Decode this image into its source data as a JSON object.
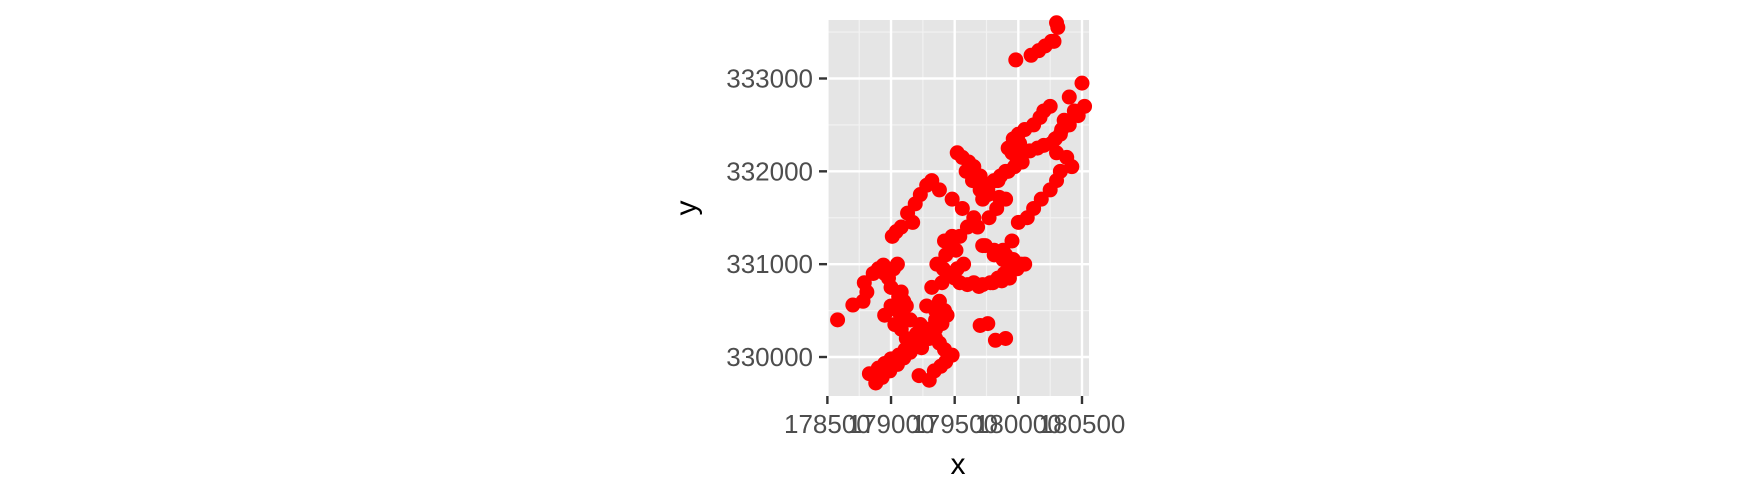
{
  "chart_data": {
    "type": "scatter",
    "title": "",
    "xlabel": "x",
    "ylabel": "y",
    "xlim": [
      178497,
      180555
    ],
    "ylim": [
      329580,
      333630
    ],
    "x_ticks": [
      178500,
      179000,
      179500,
      180000,
      180500
    ],
    "x_tick_labels": [
      "178500",
      "179000",
      "179500",
      "180000",
      "180500"
    ],
    "y_ticks": [
      330000,
      331000,
      332000,
      333000
    ],
    "y_tick_labels": [
      "330000",
      "331000",
      "332000",
      "333000"
    ],
    "grid": true,
    "panel_background": "#e5e5e5",
    "point_color": "#ff0000",
    "legend": "none",
    "x": [
      178580,
      178700,
      178780,
      178810,
      178790,
      178860,
      178900,
      178940,
      178950,
      178980,
      179020,
      179050,
      179000,
      179060,
      179080,
      179100,
      179060,
      179120,
      178950,
      179030,
      179080,
      179150,
      179200,
      179120,
      179180,
      179240,
      179300,
      179350,
      179280,
      179320,
      179400,
      179380,
      179420,
      179350,
      179300,
      179260,
      179440,
      179480,
      179520,
      179570,
      179650,
      179720,
      179800,
      179870,
      179930,
      179990,
      180050,
      179720,
      179880,
      179810,
      179950,
      180000,
      180070,
      180120,
      180180,
      180250,
      180300,
      180330,
      180420,
      180380,
      180300,
      180260,
      180200,
      180150,
      180090,
      180010,
      180340,
      180400,
      180470,
      180520,
      180330,
      180290,
      180360,
      180440,
      180400,
      180500,
      180250,
      180200,
      180170,
      180120,
      180050,
      180000,
      179960,
      180010,
      179920,
      179950,
      179990,
      180030,
      179970,
      179900,
      179860,
      179810,
      179760,
      179700,
      179650,
      179610,
      179560,
      179520,
      179590,
      179640,
      179700,
      179760,
      179850,
      179900,
      179820,
      179480,
      179420,
      179460,
      179510,
      179430,
      179360,
      179410,
      179460,
      179500,
      179540,
      179600,
      179690,
      179780,
      179840,
      179890,
      179950,
      179880,
      179540,
      179600,
      179650,
      179560,
      179480,
      179380,
      179320,
      179280,
      179230,
      179190,
      179130,
      179170,
      179080,
      179040,
      179010,
      178830,
      178900,
      178950,
      179000,
      179060,
      179110,
      179160,
      179200,
      179240,
      179290,
      179220,
      179300,
      179340,
      179390,
      179430,
      179480,
      179420,
      179380,
      179350,
      179310,
      179270,
      179230,
      179150,
      179090,
      179050,
      179000,
      178880,
      178930,
      178990,
      179050,
      179100,
      179150,
      179200,
      179250,
      179300,
      179350,
      179400,
      179700,
      179760,
      179820,
      179900,
      179740,
      179810,
      179900,
      179960,
      180020,
      179680,
      179770,
      179830,
      179720,
      179760,
      179840,
      179920,
      179990,
      180300,
      180310,
      180280,
      179980,
      180100,
      180160,
      180210,
      180260
    ],
    "y": [
      330400,
      330560,
      330600,
      330700,
      330800,
      330900,
      330950,
      330990,
      330900,
      330850,
      330950,
      331000,
      330750,
      330650,
      330700,
      330600,
      330500,
      330550,
      330450,
      330350,
      330300,
      330400,
      330250,
      330200,
      330150,
      330100,
      330200,
      330500,
      330550,
      330750,
      330800,
      330600,
      330500,
      330400,
      330300,
      330250,
      330450,
      330900,
      330950,
      331000,
      330800,
      330780,
      330800,
      330820,
      330850,
      330950,
      331000,
      331200,
      331150,
      331100,
      331250,
      331450,
      331500,
      331600,
      331700,
      331800,
      331900,
      332000,
      332050,
      332150,
      332200,
      332300,
      332280,
      332250,
      332220,
      332200,
      332450,
      332500,
      332600,
      332700,
      332400,
      332350,
      332550,
      332650,
      332800,
      332950,
      332700,
      332650,
      332580,
      332500,
      332450,
      332400,
      332350,
      332300,
      332250,
      332200,
      332150,
      332100,
      332050,
      332000,
      331950,
      331900,
      331850,
      331950,
      332050,
      332100,
      332150,
      332200,
      332000,
      331900,
      331800,
      331750,
      331720,
      331700,
      331900,
      331300,
      331250,
      331200,
      331150,
      331100,
      331000,
      330950,
      330900,
      330850,
      330800,
      330780,
      330760,
      330800,
      330850,
      330900,
      331000,
      331050,
      331300,
      331400,
      331500,
      331600,
      331700,
      331800,
      331900,
      331850,
      331750,
      331650,
      331550,
      331450,
      331400,
      331350,
      331300,
      329820,
      329880,
      329930,
      329980,
      330020,
      330080,
      330130,
      330180,
      330220,
      330260,
      329800,
      329750,
      329850,
      329900,
      329950,
      330020,
      330080,
      330150,
      330200,
      330250,
      330300,
      330350,
      330400,
      330450,
      330500,
      330550,
      329720,
      329780,
      329850,
      329920,
      329990,
      330050,
      330120,
      330180,
      330240,
      330300,
      330360,
      330340,
      330360,
      330180,
      330200,
      331200,
      331150,
      331100,
      331050,
      331000,
      331400,
      331500,
      331600,
      331700,
      331800,
      331900,
      332000,
      332100,
      333600,
      333550,
      333400,
      333200,
      333250,
      333300,
      333350,
      333400
    ]
  }
}
